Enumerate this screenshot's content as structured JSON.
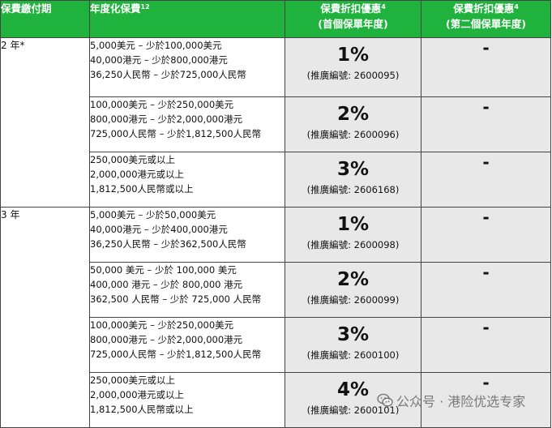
{
  "header": {
    "col1": "保費繳付期",
    "col2": "年度化保費",
    "col2_sup": "12",
    "col3_line1": "保費折扣優惠",
    "col3_sup": "4",
    "col3_line2": "(首個保單年度)",
    "col4_line1": "保費折扣優惠",
    "col4_sup": "4",
    "col4_line2": "(第二個保單年度)"
  },
  "groups": [
    {
      "term": "2 年*",
      "rows": [
        {
          "lines": [
            "5,000美元 – 少於100,000美元",
            "40,000港元 – 少於800,000港元",
            "36,250人民幣 – 少於725,000人民幣"
          ],
          "discount": "1%",
          "code": "(推廣編號: 2600095)",
          "second": "-"
        },
        {
          "lines": [
            "100,000美元 – 少於250,000美元",
            "800,000港元 – 少於2,000,000港元",
            "725,000人民幣 – 少於1,812,500人民幣"
          ],
          "discount": "2%",
          "code": "(推廣編號: 2600096)",
          "second": "-"
        },
        {
          "lines": [
            "250,000美元或以上",
            "2,000,000港元或以上",
            "1,812,500人民幣或以上"
          ],
          "discount": "3%",
          "code": "(推廣編號: 2606168)",
          "second": "-"
        }
      ]
    },
    {
      "term": "3 年",
      "rows": [
        {
          "lines": [
            "5,000美元 – 少於50,000美元",
            "40,000港元 – 少於400,000港元",
            "36,250人民幣 – 少於362,500人民幣"
          ],
          "discount": "1%",
          "code": "(推廣編號: 2600098)",
          "second": "-"
        },
        {
          "lines": [
            "50,000 美元 – 少於 100,000 美元",
            "400,000 港元 – 少於 800,000 港元",
            "362,500 人民幣 – 少於 725,000 人民幣"
          ],
          "discount": "2%",
          "code": "(推廣編號: 2600099)",
          "second": "-"
        },
        {
          "lines": [
            "100,000美元 – 少於250,000美元",
            "800,000港元 – 少於2,000,000港元",
            "725,000人民幣 – 少於1,812,500人民幣"
          ],
          "discount": "3%",
          "code": "(推廣編號: 2600100)",
          "second": "-"
        },
        {
          "lines": [
            "250,000美元或以上",
            "2,000,000港元或以上",
            "1,812,500人民幣或以上"
          ],
          "discount": "4%",
          "code": "(推廣編號: 2600101)",
          "second": "-"
        }
      ]
    }
  ],
  "watermark": {
    "text": "公众号 · 港险优选专家",
    "icon": "wechat-icon"
  }
}
